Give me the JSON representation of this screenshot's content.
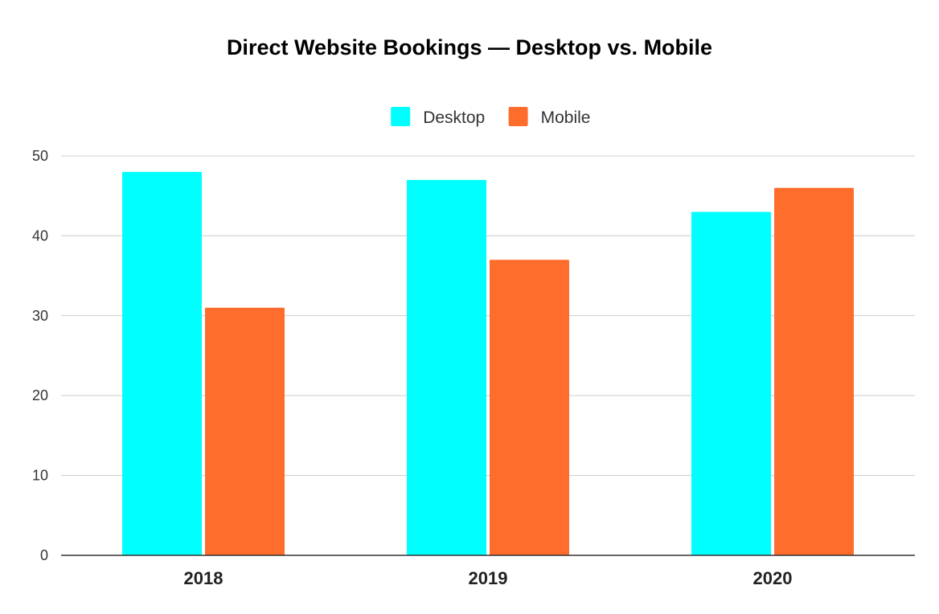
{
  "chart_data": {
    "type": "bar",
    "title": "Direct Website Bookings — Desktop vs. Mobile",
    "categories": [
      "2018",
      "2019",
      "2020"
    ],
    "series": [
      {
        "name": "Desktop",
        "values": [
          48,
          47,
          43
        ],
        "color": "#00ffff"
      },
      {
        "name": "Mobile",
        "values": [
          31,
          37,
          46
        ],
        "color": "#ff6d2d"
      }
    ],
    "ylim": [
      0,
      50
    ],
    "yticks": [
      0,
      10,
      20,
      30,
      40,
      50
    ],
    "grid": true,
    "legend": "top-center",
    "xlabel": "",
    "ylabel": ""
  }
}
